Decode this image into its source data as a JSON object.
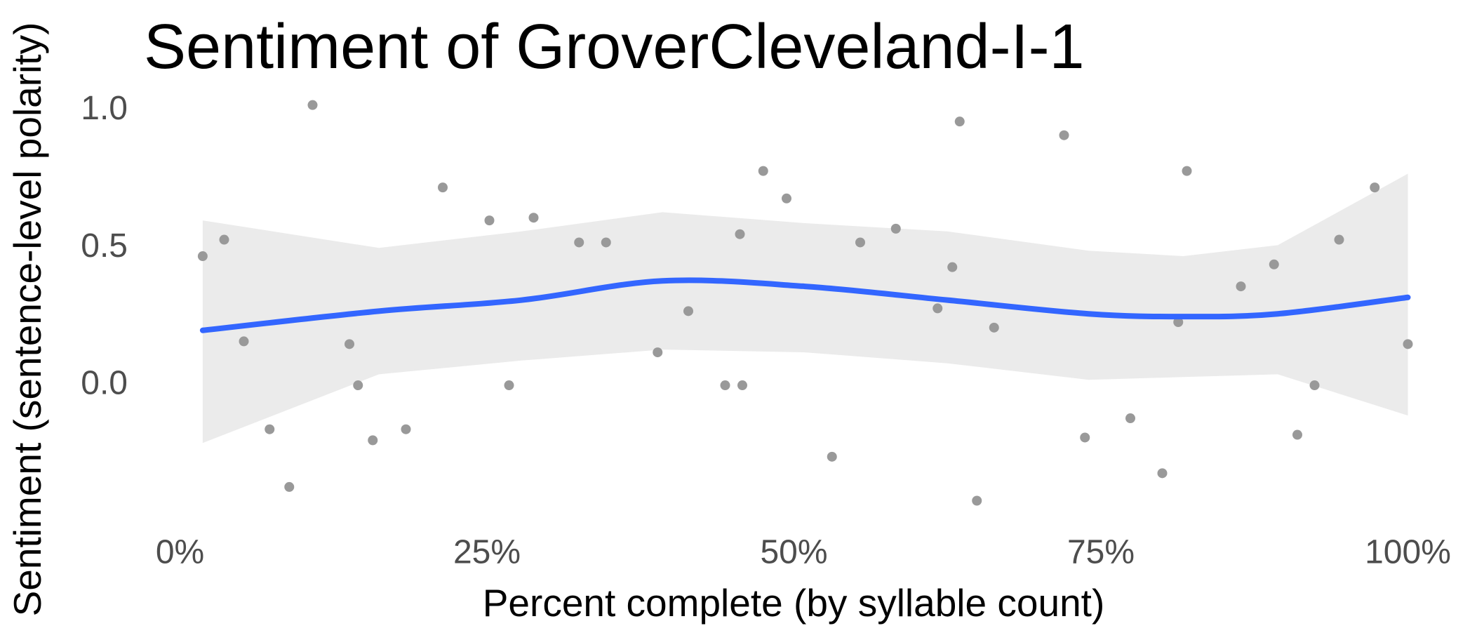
{
  "chart_data": {
    "type": "scatter-smooth",
    "title": "Sentiment of GroverCleveland-I-1",
    "x_label": "Percent complete (by syllable count)",
    "y_label": "Sentiment (sentence-level polarity)",
    "xlim": [
      -3,
      103
    ],
    "ylim": [
      -0.48,
      1.06
    ],
    "xticks": [
      {
        "value": 0,
        "label": "0%"
      },
      {
        "value": 25,
        "label": "25%"
      },
      {
        "value": 50,
        "label": "50%"
      },
      {
        "value": 75,
        "label": "75%"
      },
      {
        "value": 100,
        "label": "100%"
      }
    ],
    "yticks": [
      {
        "value": 0,
        "label": "0.0"
      },
      0.5,
      {
        "value": 1,
        "label": "1.0"
      }
    ],
    "point_color": "#999999",
    "line_color": "#3366ff",
    "ribbon_color": "#ebebeb",
    "points": {
      "x": [
        1.85,
        3.6,
        5.2,
        7.3,
        8.9,
        10.8,
        13.8,
        14.5,
        15.7,
        18.4,
        21.4,
        25.2,
        26.8,
        28.8,
        32.5,
        34.7,
        38.9,
        41.4,
        44.4,
        45.6,
        45.8,
        47.5,
        49.4,
        53.1,
        55.4,
        58.3,
        61.7,
        62.9,
        63.5,
        64.9,
        66.3,
        72.0,
        73.7,
        77.4,
        80.0,
        81.3,
        82.0,
        86.4,
        89.1,
        91.0,
        92.4,
        94.4,
        97.3,
        100
      ],
      "y": [
        0.47,
        0.53,
        0.16,
        -0.16,
        -0.37,
        1.02,
        0.15,
        0.0,
        -0.2,
        -0.16,
        0.72,
        0.6,
        0.0,
        0.61,
        0.52,
        0.52,
        0.12,
        0.27,
        0.0,
        0.55,
        0.0,
        0.78,
        0.68,
        -0.26,
        0.52,
        0.57,
        0.28,
        0.43,
        0.96,
        -0.42,
        0.21,
        0.91,
        -0.19,
        -0.12,
        -0.32,
        0.23,
        0.78,
        0.36,
        0.44,
        -0.18,
        0.0,
        0.53,
        0.72,
        0.15
      ]
    },
    "smooth": {
      "x": [
        1.85,
        16.2,
        27.8,
        39.3,
        50.9,
        62.5,
        74.0,
        81.7,
        89.4,
        100
      ],
      "y": [
        0.2,
        0.27,
        0.31,
        0.38,
        0.36,
        0.31,
        0.26,
        0.25,
        0.26,
        0.32
      ],
      "ymin": [
        -0.21,
        0.04,
        0.09,
        0.13,
        0.12,
        0.08,
        0.02,
        0.03,
        0.04,
        -0.11
      ],
      "ymax": [
        0.6,
        0.5,
        0.56,
        0.63,
        0.59,
        0.56,
        0.49,
        0.47,
        0.51,
        0.77
      ]
    }
  }
}
